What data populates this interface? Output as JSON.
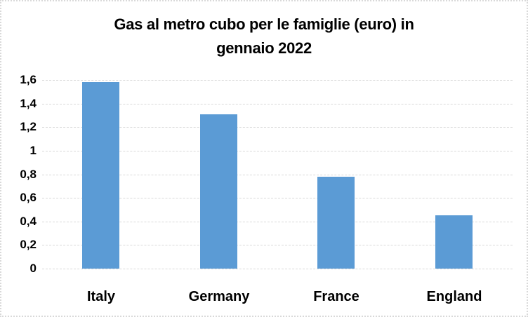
{
  "window": {
    "background": "#FFFFFF",
    "frame_border_color": "#D9D9D9"
  },
  "chart_data": {
    "type": "bar",
    "title": "Gas al metro cubo per le famiglie (euro) in gennaio 2022",
    "title_lines": [
      "Gas al metro cubo per le famiglie (euro) in",
      "gennaio 2022"
    ],
    "categories": [
      "Italy",
      "Germany",
      "France",
      "England"
    ],
    "values": [
      1.58,
      1.31,
      0.78,
      0.45
    ],
    "xlabel": "",
    "ylabel": "",
    "ylim": [
      0,
      1.6
    ],
    "ytick_step": 0.2,
    "ytick_labels": [
      "0",
      "0,2",
      "0,4",
      "0,6",
      "0,8",
      "1",
      "1,2",
      "1,4",
      "1,6"
    ],
    "decimal_separator": ",",
    "grid": true,
    "gridline_style": "dashed",
    "gridline_color": "#D9D9D9",
    "bar_color": "#5B9BD5",
    "text_color": "#000000",
    "legend_position": "none"
  }
}
